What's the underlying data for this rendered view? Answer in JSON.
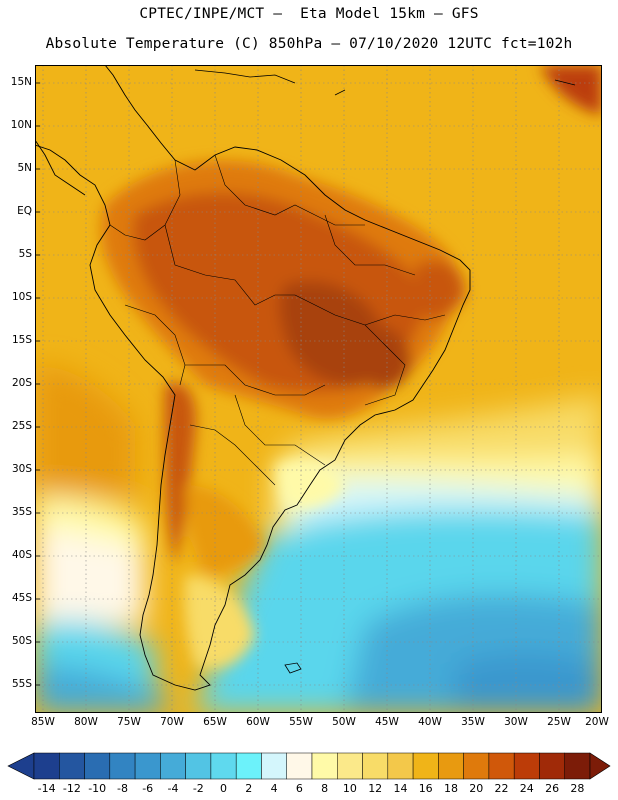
{
  "header": {
    "title_line1": "CPTEC/INPE/MCT –  Eta Model 15km – GFS",
    "title_line2": "Absolute Temperature (C) 850hPa – 07/10/2020 12UTC fct=102h"
  },
  "map": {
    "lat_labels": [
      "15N",
      "10N",
      "5N",
      "EQ",
      "5S",
      "10S",
      "15S",
      "20S",
      "25S",
      "30S",
      "35S",
      "40S",
      "45S",
      "50S",
      "55S"
    ],
    "lon_labels": [
      "85W",
      "80W",
      "75W",
      "70W",
      "65W",
      "60W",
      "55W",
      "50W",
      "45W",
      "40W",
      "35W",
      "30W",
      "25W",
      "20W"
    ],
    "colors": {
      "ocean_warm": "#f0b418",
      "ocean_mid": "#f4d050",
      "land_hot": "#c8560e",
      "land_very_hot": "#a8420a",
      "cool_water": "#5ad6ec",
      "cold_water": "#3aa0d2",
      "coast": "#000000"
    }
  },
  "colorbar": {
    "labels": [
      "-14",
      "-12",
      "-10",
      "-8",
      "-6",
      "-4",
      "-2",
      "0",
      "2",
      "4",
      "6",
      "8",
      "10",
      "12",
      "14",
      "16",
      "18",
      "20",
      "22",
      "24",
      "26",
      "28"
    ],
    "colors": [
      "#1d3f8e",
      "#2456a0",
      "#2a6db2",
      "#3284c2",
      "#3a97ce",
      "#45abd8",
      "#52c4e4",
      "#5fd9ee",
      "#6cf2fa",
      "#d4f6fc",
      "#fff8e8",
      "#fffaa8",
      "#fbe98a",
      "#f8dc68",
      "#f3c84a",
      "#f0b418",
      "#e89a10",
      "#df7a0c",
      "#d0580a",
      "#bc3c08",
      "#a02a08",
      "#7c1c08"
    ]
  }
}
